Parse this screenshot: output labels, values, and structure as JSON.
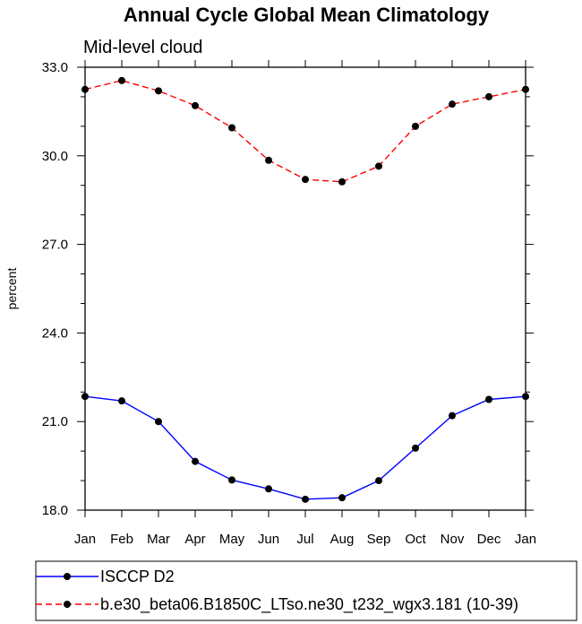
{
  "chart_data": {
    "type": "line",
    "title": "Annual Cycle Global Mean Climatology",
    "subtitle": "Mid-level cloud",
    "xlabel": "",
    "ylabel": "percent",
    "categories": [
      "Jan",
      "Feb",
      "Mar",
      "Apr",
      "May",
      "Jun",
      "Jul",
      "Aug",
      "Sep",
      "Oct",
      "Nov",
      "Dec",
      "Jan"
    ],
    "ylim": [
      18.0,
      33.0
    ],
    "yticks": [
      "18.0",
      "21.0",
      "24.0",
      "27.0",
      "30.0",
      "33.0"
    ],
    "series": [
      {
        "name": "ISCCP D2",
        "color": "#0000ff",
        "dash": "solid",
        "values": [
          21.85,
          21.7,
          21.0,
          19.65,
          19.02,
          18.72,
          18.37,
          18.42,
          19.0,
          20.1,
          21.2,
          21.75,
          21.85
        ]
      },
      {
        "name": "b.e30_beta06.B1850C_LTso.ne30_t232_wgx3.181 (10-39)",
        "color": "#ff0000",
        "dash": "dashed",
        "values": [
          32.25,
          32.55,
          32.2,
          31.7,
          30.95,
          29.85,
          29.2,
          29.12,
          29.65,
          31.0,
          31.75,
          32.0,
          32.25
        ]
      }
    ],
    "legend_position": "bottom",
    "grid": false
  }
}
